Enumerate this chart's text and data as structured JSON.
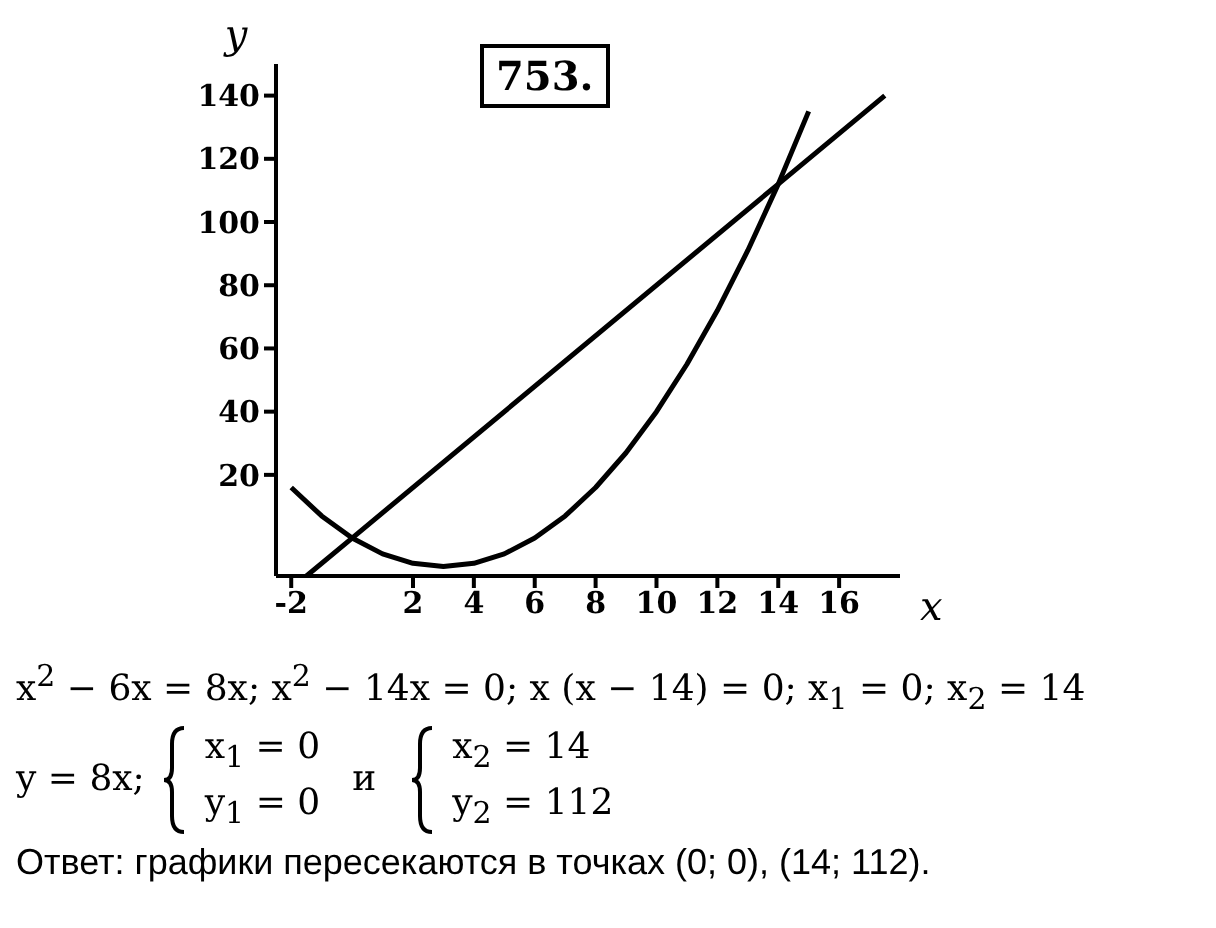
{
  "chart_data": {
    "type": "line",
    "xlabel": "x",
    "ylabel": "y",
    "annotations": [
      "753.",
      "x$^{2}$ − 6x = 8x; x$^{2}$ − 14x = 0; x (x − 14) = 0; x$_{1}$ = 0; x$_{2}$ = 14",
      "y = 8x;",
      "x$_{1}$ = 0",
      "y$_{1}$ = 0",
      "и",
      "x$_{2}$ = 14",
      "y$_{2}$ = 112",
      "Ответ: графики пересекаются в точках (0; 0), (14; 112)."
    ],
    "series": [
      {
        "color": "#000000",
        "x": [
          -2,
          -1,
          0,
          1,
          2,
          3,
          4,
          5,
          6,
          7,
          8,
          9,
          10,
          11,
          12,
          13,
          14,
          15
        ],
        "values": [
          16,
          7,
          0,
          -5,
          -8,
          -9,
          -8,
          -5,
          0,
          7,
          16,
          27,
          40,
          55,
          72,
          91,
          112,
          135
        ]
      },
      {
        "color": "#000000",
        "x": [
          -1.5,
          0,
          14,
          17.5
        ],
        "values": [
          -12,
          0,
          112,
          140
        ]
      }
    ],
    "xlim": [
      -2.5,
      18
    ],
    "xticks": [
      -2,
      2,
      4,
      6,
      8,
      10,
      12,
      14,
      16
    ],
    "ylim": [
      -12,
      150
    ],
    "yticks": [
      20,
      40,
      60,
      80,
      100,
      120,
      140
    ],
    "grid": false,
    "legend": false,
    "marker": "none",
    "line_style": "solid"
  }
}
